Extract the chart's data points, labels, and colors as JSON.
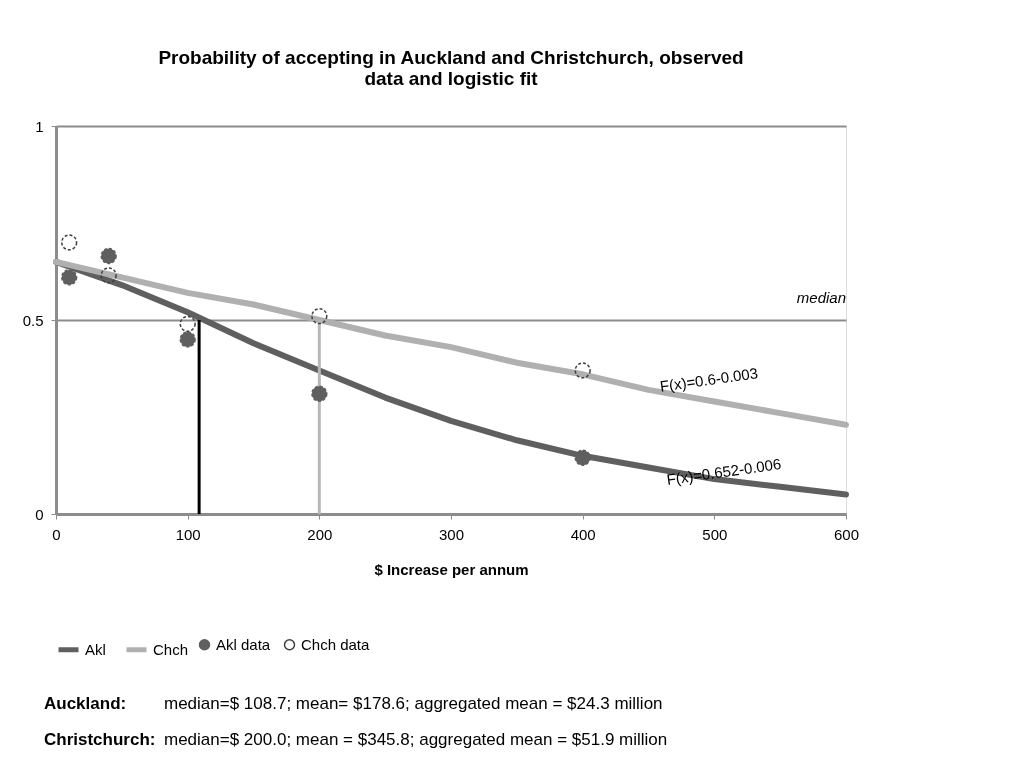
{
  "chart_data": {
    "type": "line",
    "title": [
      "Probability of accepting in Auckland and Christchurch, observed",
      "data and logistic fit"
    ],
    "xlabel": "$ Increase per annum",
    "xlim": [
      0,
      600
    ],
    "xticks": [
      0,
      100,
      200,
      300,
      400,
      500,
      600
    ],
    "ylim": [
      0,
      1
    ],
    "yticks": [
      0,
      0.5,
      1
    ],
    "grid": "y",
    "legend": "bottom",
    "series": [
      {
        "name": "Akl",
        "color": "#5f5f5f",
        "x": [
          0,
          50,
          100,
          150,
          200,
          250,
          300,
          350,
          400,
          450,
          500,
          550,
          600
        ],
        "values": [
          0.65,
          0.59,
          0.52,
          0.44,
          0.37,
          0.3,
          0.24,
          0.19,
          0.15,
          0.12,
          0.09,
          0.07,
          0.05
        ]
      },
      {
        "name": "Chch",
        "color": "#b0b0b0",
        "x": [
          0,
          50,
          100,
          150,
          200,
          250,
          300,
          350,
          400,
          450,
          500,
          550,
          600
        ],
        "values": [
          0.65,
          0.61,
          0.57,
          0.54,
          0.5,
          0.46,
          0.43,
          0.39,
          0.36,
          0.32,
          0.29,
          0.26,
          0.23
        ]
      },
      {
        "name": "Akl data",
        "type": "scatter",
        "marker": "circle",
        "color": "#5f5f5f",
        "x": [
          10,
          40,
          100,
          200,
          400
        ],
        "values": [
          0.61,
          0.665,
          0.45,
          0.31,
          0.145
        ]
      },
      {
        "name": "Chch data",
        "type": "scatter",
        "marker": "circle",
        "color": "#404040",
        "x": [
          10,
          40,
          100,
          200,
          400
        ],
        "values": [
          0.7,
          0.615,
          0.49,
          0.51,
          0.37
        ]
      },
      {
        "color": "#000000",
        "x": [
          108.7,
          108.7
        ],
        "values": [
          0,
          0.5
        ]
      },
      {
        "color": "#b8b8b8",
        "x": [
          200,
          200
        ],
        "values": [
          0,
          0.5
        ]
      }
    ],
    "annotations": [
      "median",
      "F(x)=0.6-0.003",
      "F(x)=0.652-0.006",
      "Auckland:",
      "median=$ 108.7; mean= $178.6; aggregated mean = $24.3 million",
      "Christchurch:",
      "median=$ 200.0;  mean = $345.8; aggregated mean = $51.9 million"
    ]
  }
}
